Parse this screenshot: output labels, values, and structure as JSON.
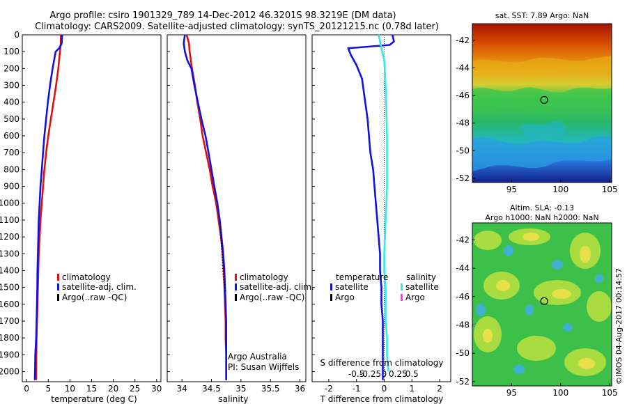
{
  "header": {
    "line1": "Argo profile: csiro 1901329_789 14-Dec-2012 46.3201S 98.3219E (DM data)",
    "line2": "Climatology: CARS2009. Satellite-adjusted climatology: synTS_20121215.nc (0.78d later)"
  },
  "colors": {
    "climatology": "#e01010",
    "satellite": "#1010e0",
    "argo": "#000000",
    "salinity_satellite": "#33e8e8",
    "argo_salinity": "#ff33ff"
  },
  "chart_data": [
    {
      "type": "line",
      "panel": "temperature",
      "xlabel": "temperature (deg C)",
      "ylabel": "",
      "xlim": [
        -1,
        31
      ],
      "ylim": [
        2060,
        0
      ],
      "xticks": [
        0,
        5,
        10,
        15,
        20,
        25,
        30
      ],
      "yticks": [
        0,
        100,
        200,
        300,
        400,
        500,
        600,
        700,
        800,
        900,
        1000,
        1100,
        1200,
        1300,
        1400,
        1500,
        1600,
        1700,
        1800,
        1900,
        2000
      ],
      "legend": [
        "climatology",
        "satellite-adj. clim.",
        "Argo(..raw -QC)"
      ],
      "legend_position": "lower-center",
      "series": [
        {
          "name": "climatology",
          "x": [
            7.9,
            7.9,
            7.7,
            7.3,
            6.8,
            6.2,
            5.6,
            5.0,
            4.5,
            4.1,
            3.8,
            3.5,
            3.2,
            3.0,
            2.8,
            2.7,
            2.6,
            2.5,
            2.4,
            2.3,
            2.25,
            2.2
          ],
          "y": [
            0,
            50,
            100,
            200,
            300,
            400,
            500,
            600,
            700,
            800,
            900,
            1000,
            1100,
            1200,
            1300,
            1400,
            1500,
            1600,
            1700,
            1800,
            1900,
            2050
          ]
        },
        {
          "name": "satellite-adj. clim.",
          "x": [
            8.2,
            8.1,
            7.5,
            6.7,
            6.0,
            5.4,
            4.9,
            4.5,
            4.1,
            3.8,
            3.5,
            3.2,
            3.0,
            2.8,
            2.7,
            2.6,
            2.5,
            2.45,
            2.4,
            2.3,
            2.2,
            2.0,
            1.9
          ],
          "y": [
            0,
            50,
            80,
            100,
            200,
            300,
            400,
            500,
            600,
            700,
            800,
            900,
            1000,
            1100,
            1200,
            1300,
            1400,
            1500,
            1600,
            1700,
            1800,
            1900,
            2050
          ]
        }
      ]
    },
    {
      "type": "line",
      "panel": "salinity",
      "xlabel": "salinity",
      "ylabel": "",
      "xlim": [
        33.75,
        36.1
      ],
      "ylim": [
        2060,
        0
      ],
      "xticks": [
        34,
        34.5,
        35,
        35.5,
        36
      ],
      "legend": [
        "climatology",
        "satellite-adj. clim.",
        "Argo(..raw -QC)"
      ],
      "legend_position": "lower-right",
      "annotation": [
        "Argo Australia",
        "PI: Susan Wijffels"
      ],
      "series": [
        {
          "name": "climatology",
          "x": [
            34.08,
            34.12,
            34.13,
            34.17,
            34.22,
            34.26,
            34.31,
            34.35,
            34.41,
            34.47,
            34.52,
            34.58,
            34.62,
            34.66,
            34.69,
            34.71,
            34.72,
            34.73,
            34.74,
            34.74,
            34.75,
            34.75
          ],
          "y": [
            0,
            50,
            100,
            200,
            300,
            400,
            500,
            600,
            700,
            800,
            900,
            1000,
            1100,
            1200,
            1300,
            1400,
            1500,
            1600,
            1700,
            1800,
            1900,
            2050
          ]
        },
        {
          "name": "satellite-adj. clim.",
          "x": [
            34.05,
            34.03,
            34.05,
            34.09,
            34.16,
            34.21,
            34.27,
            34.33,
            34.4,
            34.45,
            34.5,
            34.55,
            34.6,
            34.64,
            34.67,
            34.7,
            34.72,
            34.73,
            34.74,
            34.75,
            34.75,
            34.75,
            34.75
          ],
          "y": [
            0,
            50,
            100,
            150,
            200,
            300,
            400,
            500,
            600,
            700,
            800,
            900,
            1000,
            1100,
            1200,
            1300,
            1400,
            1500,
            1600,
            1700,
            1800,
            1900,
            2050
          ]
        },
        {
          "name": "Argo(..raw -QC)",
          "x": [
            34.65,
            34.66,
            34.67,
            34.68,
            34.69,
            34.7,
            34.71,
            34.72,
            34.73,
            34.74
          ],
          "y": [
            1120,
            1180,
            1240,
            1300,
            1360,
            1420,
            1460,
            1480,
            1500,
            1520
          ]
        }
      ]
    },
    {
      "type": "line",
      "panel": "difference",
      "xlabel": "T difference from climatology",
      "xlabel_secondary": "S difference from climatology",
      "xlim": [
        -2.6,
        2.4
      ],
      "ylim": [
        2060,
        0
      ],
      "xticks": [
        -2,
        -1,
        0,
        1,
        2
      ],
      "xticks_secondary": [
        "-0.5",
        "-0.25",
        "0",
        "0.25",
        "0.5"
      ],
      "legend_titles": [
        "temperature",
        "salinity"
      ],
      "legend": [
        "satellite",
        "Argo",
        "satellite",
        "Argo"
      ],
      "legend_position": "lower-center",
      "series": [
        {
          "name": "temperature satellite",
          "x": [
            0.3,
            0.35,
            0.2,
            -1.3,
            -1.2,
            -1.0,
            -0.8,
            -0.7,
            -0.6,
            -0.55,
            -0.5,
            -0.4,
            -0.35,
            -0.3,
            -0.25,
            -0.2,
            -0.15,
            -0.15,
            -0.1,
            -0.1,
            -0.05,
            -0.05,
            -0.05
          ],
          "y": [
            0,
            40,
            60,
            80,
            120,
            180,
            260,
            380,
            500,
            600,
            700,
            800,
            900,
            1000,
            1100,
            1200,
            1300,
            1400,
            1500,
            1600,
            1700,
            1900,
            2050
          ]
        },
        {
          "name": "salinity satellite",
          "x": [
            -0.2,
            -0.15,
            -0.1,
            0.0,
            0.05,
            0.1,
            0.1,
            0.05,
            0.0,
            0.0,
            0.05,
            0.05,
            0.05,
            0.1,
            0.1,
            0.15
          ],
          "y": [
            0,
            40,
            80,
            150,
            300,
            600,
            900,
            1100,
            1300,
            1400,
            1500,
            1600,
            1700,
            1800,
            1900,
            2000
          ]
        }
      ]
    }
  ],
  "maps": [
    {
      "title": "sat. SST: 7.89 Argo: NaN",
      "xlim": [
        91,
        105.2
      ],
      "ylim": [
        -52.3,
        -40.8
      ],
      "xticks": [
        95,
        100,
        105
      ],
      "yticks": [
        -42,
        -44,
        -46,
        -48,
        -50,
        -52
      ],
      "argo_position": [
        98.32,
        -46.32
      ],
      "colors_top_to_bottom": [
        "#b01800",
        "#e86a00",
        "#e8a800",
        "#d8d830",
        "#40c840",
        "#22c0a0",
        "#30a0e0",
        "#1020a0"
      ]
    },
    {
      "title_line1": "Altim. SLA: -0.13",
      "title_line2": "Argo h1000: NaN h2000: NaN",
      "xlim": [
        91,
        105.2
      ],
      "ylim": [
        -52.3,
        -40.8
      ],
      "xticks": [
        95,
        100,
        105
      ],
      "yticks": [
        -42,
        -44,
        -46,
        -48,
        -50,
        -52
      ],
      "argo_position": [
        98.32,
        -46.32
      ],
      "colors": [
        "#3cc04a",
        "#a8dc40",
        "#e8e048",
        "#40b0d0"
      ]
    }
  ],
  "footer": {
    "watermark": "©IMOS 04-Aug-2017 00:14:57"
  }
}
